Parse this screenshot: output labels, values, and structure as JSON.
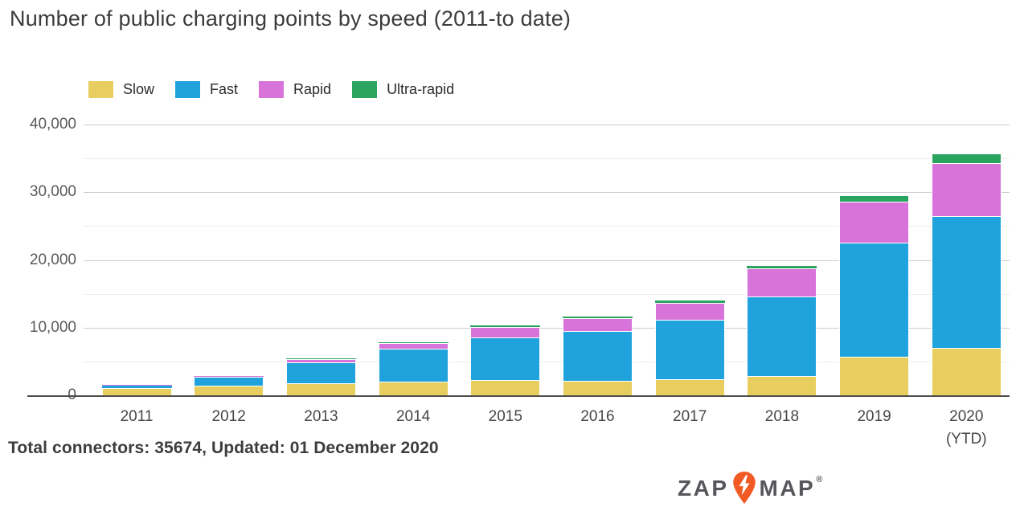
{
  "title": "Number of public charging points by speed (2011-to date)",
  "footer": {
    "text": "Total connectors: 35674, Updated: 01 December 2020"
  },
  "logo": {
    "zap": "ZAP",
    "map": "MAP",
    "registered": "®",
    "pin_color": "#f15a22",
    "text_color": "#56575b"
  },
  "chart_data": {
    "type": "bar",
    "stacked": true,
    "title": "Number of public charging points by speed (2011-to date)",
    "xlabel": "",
    "ylabel": "",
    "ylim": [
      0,
      40000
    ],
    "grid": true,
    "legend_position": "top-left",
    "categories": [
      {
        "label": "2011"
      },
      {
        "label": "2012"
      },
      {
        "label": "2013"
      },
      {
        "label": "2014"
      },
      {
        "label": "2015"
      },
      {
        "label": "2016"
      },
      {
        "label": "2017"
      },
      {
        "label": "2018"
      },
      {
        "label": "2019"
      },
      {
        "label": "2020",
        "sublabel": "(YTD)"
      }
    ],
    "series": [
      {
        "name": "Slow",
        "color": "#e8cd5f",
        "values": [
          1100,
          1400,
          1750,
          2050,
          2250,
          2100,
          2400,
          2900,
          5700,
          7000
        ]
      },
      {
        "name": "Fast",
        "color": "#20a3dc",
        "values": [
          350,
          1350,
          3150,
          4850,
          6250,
          7350,
          8800,
          11700,
          16800,
          19500
        ]
      },
      {
        "name": "Rapid",
        "color": "#d873d9",
        "values": [
          50,
          150,
          450,
          780,
          1600,
          1950,
          2500,
          4150,
          6100,
          7800
        ]
      },
      {
        "name": "Ultra-rapid",
        "color": "#2aa45e",
        "values": [
          0,
          0,
          100,
          200,
          230,
          280,
          340,
          330,
          1000,
          1374
        ]
      }
    ],
    "totals": [
      1500,
      2900,
      5450,
      7880,
      10330,
      11680,
      14040,
      19080,
      29600,
      35674
    ],
    "yticks": [
      {
        "value": 0,
        "label": "0"
      },
      {
        "value": 10000,
        "label": "10,000"
      },
      {
        "value": 20000,
        "label": "20,000"
      },
      {
        "value": 30000,
        "label": "30,000"
      },
      {
        "value": 40000,
        "label": "40,000"
      }
    ],
    "minor_yticks": [
      5000,
      15000,
      25000,
      35000
    ]
  }
}
